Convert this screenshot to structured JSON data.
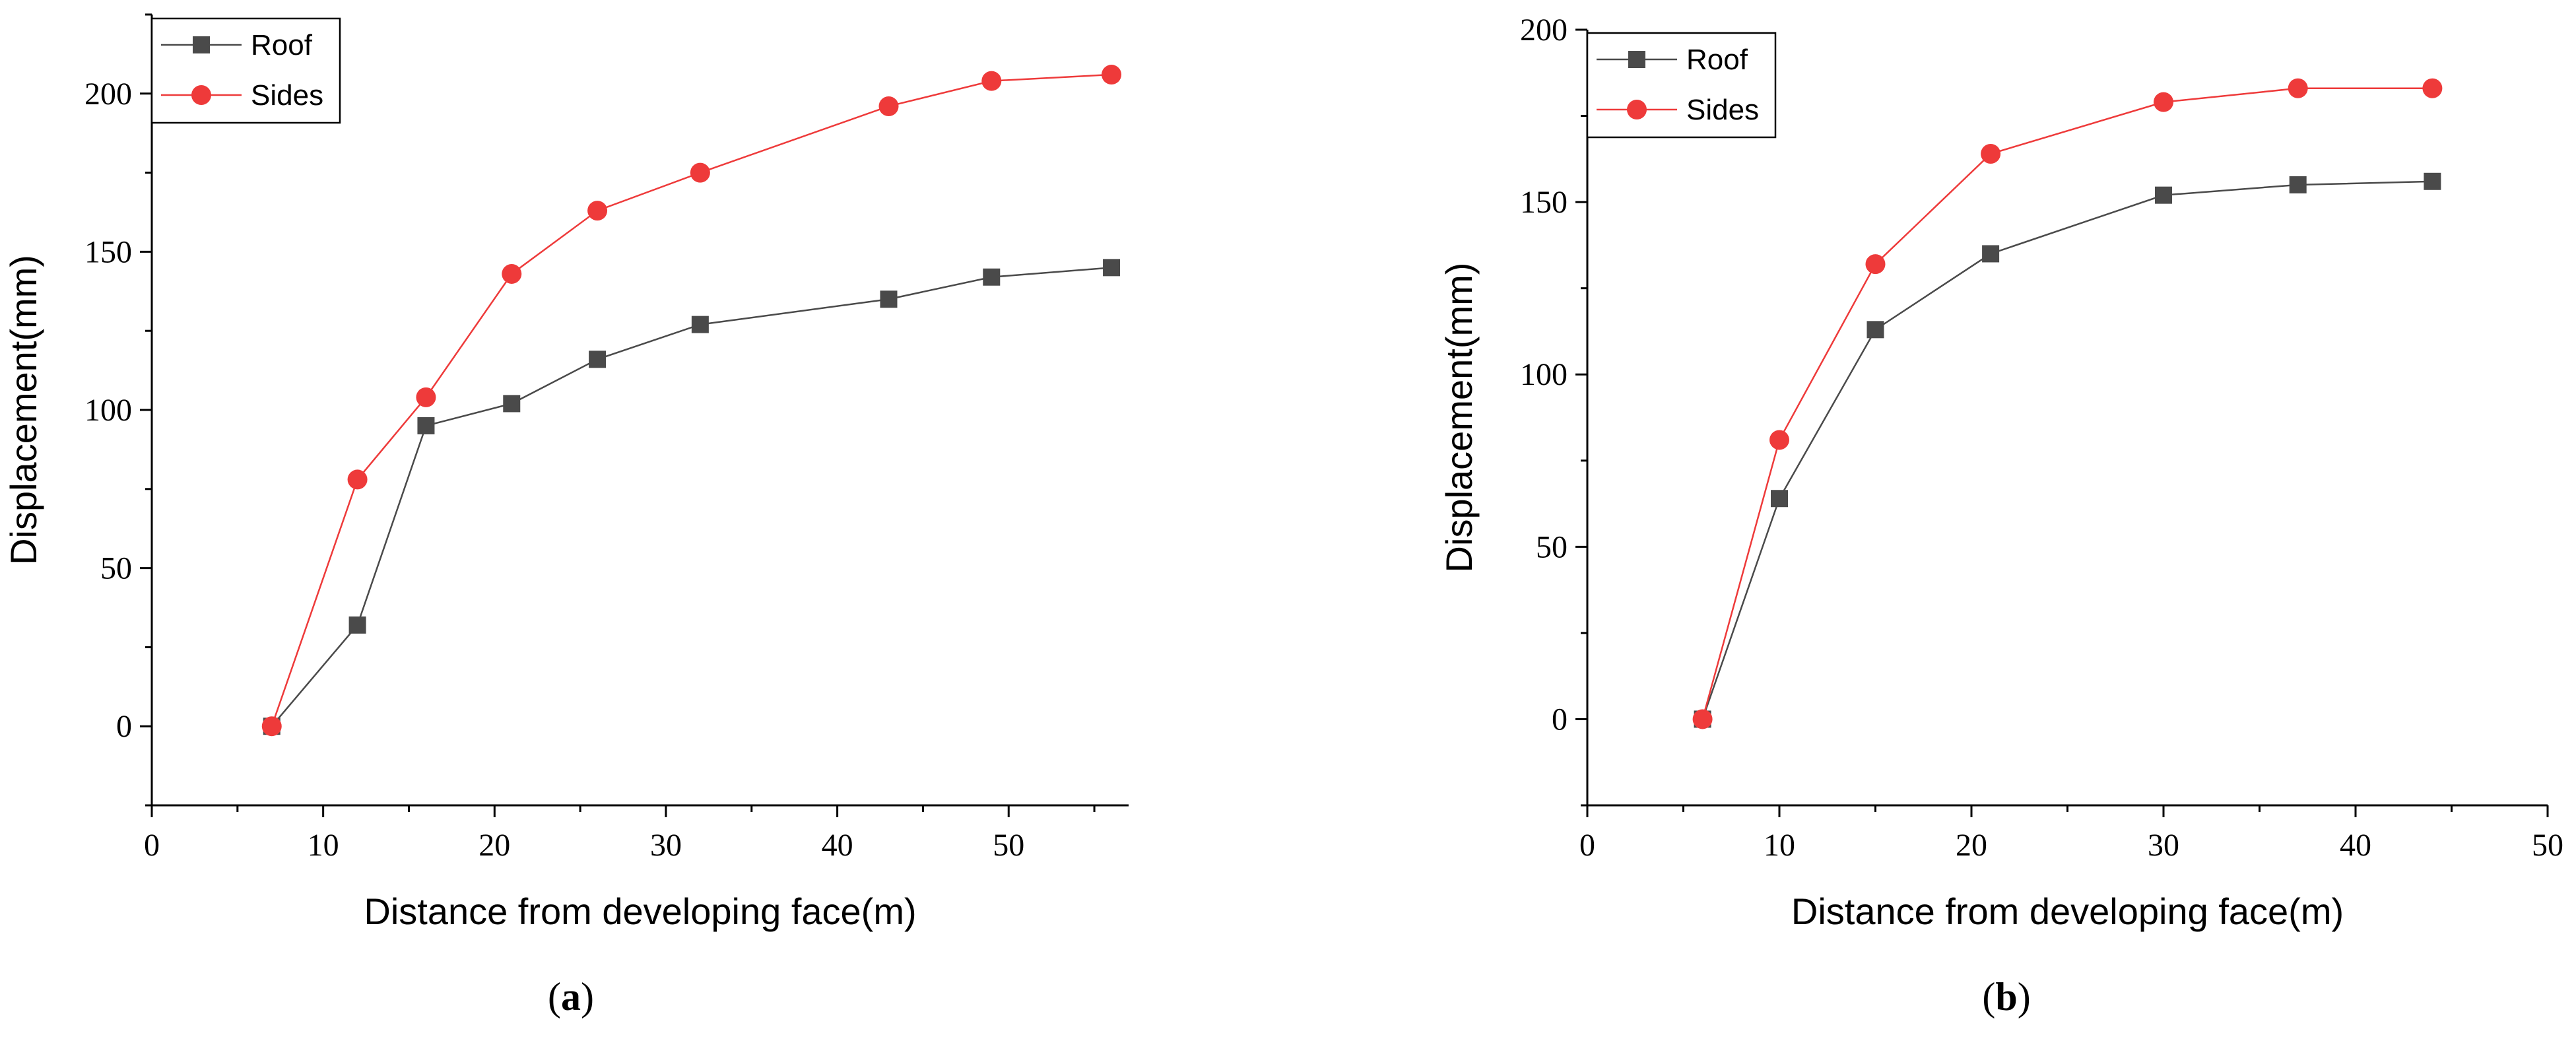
{
  "chart_data": [
    {
      "type": "line",
      "panel_label": "a",
      "xlabel": "Distance from developing face(m)",
      "ylabel": "Displacement(mm)",
      "xlim": [
        0,
        57
      ],
      "ylim": [
        -25,
        225
      ],
      "xticks": [
        0,
        10,
        20,
        30,
        40,
        50
      ],
      "yticks": [
        0,
        50,
        100,
        150,
        200
      ],
      "legend_position": "top-left",
      "grid": false,
      "series": [
        {
          "name": "Roof",
          "color": "#4a4a4a",
          "marker": "square",
          "x": [
            7,
            12,
            16,
            21,
            26,
            32,
            43,
            49,
            56
          ],
          "y": [
            0,
            32,
            95,
            102,
            116,
            127,
            135,
            142,
            145
          ]
        },
        {
          "name": "Sides",
          "color": "#ee3a3a",
          "marker": "circle",
          "x": [
            7,
            12,
            16,
            21,
            26,
            32,
            43,
            49,
            56
          ],
          "y": [
            0,
            78,
            104,
            143,
            163,
            175,
            196,
            204,
            206
          ]
        }
      ]
    },
    {
      "type": "line",
      "panel_label": "b",
      "xlabel": "Distance from developing face(m)",
      "ylabel": "Displacement(mm)",
      "xlim": [
        0,
        50
      ],
      "ylim": [
        -25,
        200
      ],
      "xticks": [
        0,
        10,
        20,
        30,
        40,
        50
      ],
      "yticks": [
        0,
        50,
        100,
        150,
        200
      ],
      "legend_position": "top-left",
      "grid": false,
      "series": [
        {
          "name": "Roof",
          "color": "#4a4a4a",
          "marker": "square",
          "x": [
            6,
            10,
            15,
            21,
            30,
            37,
            44
          ],
          "y": [
            0,
            64,
            113,
            135,
            152,
            155,
            156
          ]
        },
        {
          "name": "Sides",
          "color": "#ee3a3a",
          "marker": "circle",
          "x": [
            6,
            10,
            15,
            21,
            30,
            37,
            44
          ],
          "y": [
            0,
            81,
            132,
            164,
            179,
            183,
            183
          ]
        }
      ]
    }
  ]
}
